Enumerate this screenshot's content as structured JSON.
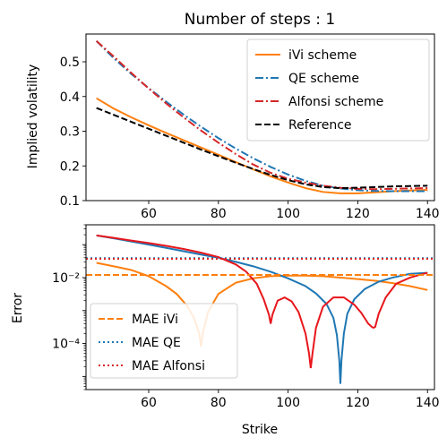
{
  "chart_data": [
    {
      "type": "line",
      "title": "Number of steps : 1",
      "xlabel": "",
      "ylabel": "Implied volatility",
      "xlim": [
        42,
        142
      ],
      "ylim": [
        0.1,
        0.58
      ],
      "x_ticks": [
        60,
        80,
        100,
        120,
        140
      ],
      "x_tick_labels": [
        "60",
        "80",
        "100",
        "120",
        "140"
      ],
      "y_ticks": [
        0.1,
        0.2,
        0.3,
        0.4,
        0.5
      ],
      "y_tick_labels": [
        "0.1",
        "0.2",
        "0.3",
        "0.4",
        "0.5"
      ],
      "legend_position": "top-right",
      "series": [
        {
          "name": "iVi scheme",
          "color": "#ff7f0e",
          "style": "solid",
          "x": [
            45,
            50,
            55,
            60,
            65,
            70,
            75,
            80,
            85,
            90,
            95,
            100,
            105,
            110,
            115,
            120,
            125,
            130,
            135,
            140
          ],
          "y": [
            0.395,
            0.365,
            0.34,
            0.317,
            0.295,
            0.274,
            0.253,
            0.232,
            0.211,
            0.19,
            0.17,
            0.152,
            0.136,
            0.125,
            0.121,
            0.121,
            0.124,
            0.127,
            0.129,
            0.131
          ]
        },
        {
          "name": "QE scheme",
          "color": "#1f77b4",
          "style": "dashdot",
          "x": [
            45,
            50,
            55,
            60,
            65,
            70,
            75,
            80,
            85,
            90,
            95,
            100,
            105,
            110,
            115,
            120,
            125,
            130,
            135,
            140
          ],
          "y": [
            0.56,
            0.51,
            0.465,
            0.424,
            0.385,
            0.348,
            0.313,
            0.28,
            0.25,
            0.222,
            0.197,
            0.175,
            0.157,
            0.143,
            0.135,
            0.13,
            0.128,
            0.127,
            0.127,
            0.127
          ]
        },
        {
          "name": "Alfonsi scheme",
          "color": "#d62728",
          "style": "dashdot",
          "x": [
            45,
            50,
            55,
            60,
            65,
            70,
            75,
            80,
            85,
            90,
            95,
            100,
            105,
            110,
            115,
            120,
            125,
            130,
            135,
            140
          ],
          "y": [
            0.56,
            0.515,
            0.468,
            0.423,
            0.38,
            0.34,
            0.302,
            0.267,
            0.234,
            0.204,
            0.18,
            0.163,
            0.152,
            0.143,
            0.137,
            0.134,
            0.133,
            0.134,
            0.135,
            0.136
          ]
        },
        {
          "name": "Reference",
          "color": "#000000",
          "style": "dashed",
          "x": [
            45,
            50,
            55,
            60,
            65,
            70,
            75,
            80,
            85,
            90,
            95,
            100,
            105,
            110,
            115,
            120,
            125,
            130,
            135,
            140
          ],
          "y": [
            0.367,
            0.347,
            0.327,
            0.307,
            0.287,
            0.267,
            0.247,
            0.228,
            0.209,
            0.191,
            0.174,
            0.159,
            0.147,
            0.139,
            0.136,
            0.137,
            0.139,
            0.141,
            0.142,
            0.143
          ]
        }
      ]
    },
    {
      "type": "line",
      "title": "",
      "xlabel": "Strike",
      "ylabel": "Error",
      "yscale": "log",
      "xlim": [
        42,
        142
      ],
      "ylim": [
        4e-06,
        0.4
      ],
      "x_ticks": [
        60,
        80,
        100,
        120,
        140
      ],
      "x_tick_labels": [
        "60",
        "80",
        "100",
        "120",
        "140"
      ],
      "y_ticks": [
        0.0001,
        0.01
      ],
      "y_tick_labels": [
        "10⁻⁴",
        "10⁻²"
      ],
      "legend_position": "lower-left",
      "series": [
        {
          "name": "",
          "color": "#ff7f0e",
          "style": "solid",
          "x": [
            45,
            50,
            55,
            60,
            65,
            68,
            71,
            73,
            74.5,
            75,
            75.5,
            77,
            80,
            85,
            90,
            95,
            100,
            105,
            110,
            115,
            120,
            125,
            130,
            135,
            140
          ],
          "y": [
            0.028,
            0.022,
            0.017,
            0.011,
            0.0055,
            0.0032,
            0.0014,
            0.0006,
            0.0002,
            8e-05,
            0.0002,
            0.0009,
            0.0032,
            0.007,
            0.0095,
            0.011,
            0.0115,
            0.0115,
            0.011,
            0.01,
            0.009,
            0.008,
            0.0068,
            0.0055,
            0.0042
          ]
        },
        {
          "name": "",
          "color": "#1f77b4",
          "style": "solid",
          "x": [
            45,
            50,
            55,
            60,
            65,
            70,
            75,
            80,
            85,
            90,
            95,
            100,
            105,
            108,
            111,
            113,
            114,
            114.7,
            115,
            115.3,
            116,
            117,
            119,
            122,
            126,
            130,
            135,
            140
          ],
          "y": [
            0.19,
            0.155,
            0.125,
            0.1,
            0.08,
            0.063,
            0.05,
            0.04,
            0.03,
            0.022,
            0.015,
            0.0095,
            0.0055,
            0.0033,
            0.0016,
            0.0006,
            0.00018,
            3e-05,
            6e-06,
            3e-05,
            0.0002,
            0.0008,
            0.0022,
            0.0045,
            0.0075,
            0.01,
            0.013,
            0.014
          ]
        },
        {
          "name": "",
          "color": "#e8161c",
          "style": "solid",
          "x": [
            45,
            50,
            55,
            60,
            65,
            70,
            75,
            80,
            85,
            88,
            91,
            93,
            94.5,
            95,
            95.5,
            97,
            99,
            101,
            103,
            105,
            106,
            106.5,
            107,
            108,
            110,
            113,
            116,
            119,
            121,
            123,
            124,
            124.5,
            125,
            126,
            128,
            131,
            135,
            140
          ],
          "y": [
            0.19,
            0.16,
            0.133,
            0.112,
            0.092,
            0.074,
            0.057,
            0.042,
            0.025,
            0.015,
            0.0065,
            0.0022,
            0.00075,
            0.0004,
            0.00075,
            0.002,
            0.0025,
            0.0019,
            0.0009,
            0.0002,
            5e-05,
            1.8e-05,
            5e-05,
            0.0003,
            0.0013,
            0.0025,
            0.0025,
            0.0015,
            0.00085,
            0.0004,
            0.00032,
            0.0003,
            0.00032,
            0.0008,
            0.0025,
            0.0065,
            0.01,
            0.014
          ]
        },
        {
          "name": "MAE iVi",
          "color": "#ff7f0e",
          "style": "dashed",
          "x": [
            42,
            142
          ],
          "y": [
            0.012,
            0.012
          ]
        },
        {
          "name": "MAE QE",
          "color": "#1f77b4",
          "style": "dotted",
          "x": [
            42,
            142
          ],
          "y": [
            0.039,
            0.039
          ]
        },
        {
          "name": "MAE Alfonsi",
          "color": "#d62728",
          "style": "dotted",
          "x": [
            42,
            142
          ],
          "y": [
            0.037,
            0.037
          ]
        }
      ]
    }
  ]
}
